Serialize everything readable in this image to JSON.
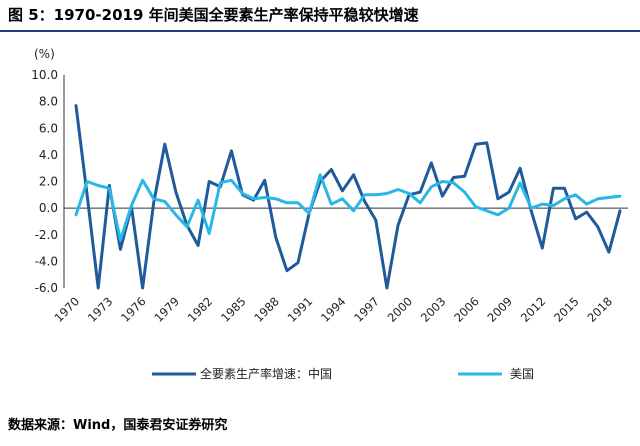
{
  "title": "图 5：1970-2019 年间美国全要素生产率保持平稳较快增速",
  "source": "数据来源：Wind，国泰君安证券研究",
  "colors": {
    "china": "#1f5a9a",
    "usa": "#26b8e6",
    "rule": "#1f3f7a"
  },
  "chart_data": {
    "type": "line",
    "title": "",
    "ylabel": "(%)",
    "xlabel": "",
    "ylim": [
      -6.0,
      10.0
    ],
    "yticks": [
      "10.0",
      "8.0",
      "6.0",
      "4.0",
      "2.0",
      "0.0",
      "-2.0",
      "-4.0",
      "-6.0"
    ],
    "xlim": [
      1970,
      2019
    ],
    "xticks": [
      "1970",
      "1973",
      "1976",
      "1979",
      "1982",
      "1985",
      "1988",
      "1991",
      "1994",
      "1997",
      "2000",
      "2003",
      "2006",
      "2009",
      "2012",
      "2015",
      "2018"
    ],
    "grid": false,
    "legend_position": "bottom",
    "x": [
      1970,
      1971,
      1972,
      1973,
      1974,
      1975,
      1976,
      1977,
      1978,
      1979,
      1980,
      1981,
      1982,
      1983,
      1984,
      1985,
      1986,
      1987,
      1988,
      1989,
      1990,
      1991,
      1992,
      1993,
      1994,
      1995,
      1996,
      1997,
      1998,
      1999,
      2000,
      2001,
      2002,
      2003,
      2004,
      2005,
      2006,
      2007,
      2008,
      2009,
      2010,
      2011,
      2012,
      2013,
      2014,
      2015,
      2016,
      2017,
      2018,
      2019
    ],
    "series": [
      {
        "name": "全要素生产率增速：中国",
        "values": [
          7.7,
          1.0,
          -6.0,
          1.7,
          -3.1,
          0.1,
          -6.0,
          0.4,
          4.8,
          1.2,
          -1.3,
          -2.8,
          2.0,
          1.6,
          4.3,
          1.0,
          0.6,
          2.1,
          -2.2,
          -4.7,
          -4.1,
          -0.4,
          2.0,
          2.9,
          1.3,
          2.5,
          0.5,
          -0.9,
          -6.0,
          -1.3,
          1.0,
          1.2,
          3.4,
          0.9,
          2.3,
          2.4,
          4.8,
          4.9,
          0.7,
          1.2,
          3.0,
          -0.2,
          -3.0,
          1.5,
          1.5,
          -0.8,
          -0.3,
          -1.4,
          -3.3,
          -0.2
        ]
      },
      {
        "name": "美国",
        "values": [
          -0.5,
          2.0,
          1.7,
          1.5,
          -2.4,
          0.2,
          2.1,
          0.7,
          0.5,
          -0.5,
          -1.4,
          0.6,
          -1.9,
          1.9,
          2.1,
          1.1,
          0.7,
          0.8,
          0.7,
          0.4,
          0.4,
          -0.4,
          2.5,
          0.3,
          0.7,
          -0.2,
          1.0,
          1.0,
          1.1,
          1.4,
          1.1,
          0.4,
          1.6,
          2.0,
          1.9,
          1.2,
          0.1,
          -0.2,
          -0.5,
          0.0,
          1.9,
          0.0,
          0.3,
          0.2,
          0.7,
          1.0,
          0.3,
          0.7,
          0.8,
          0.9
        ]
      }
    ]
  }
}
